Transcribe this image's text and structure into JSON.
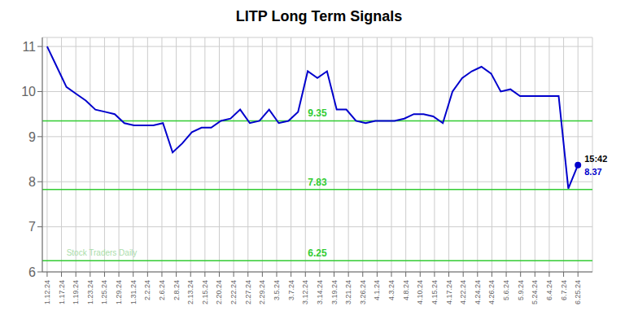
{
  "chart_data": {
    "type": "line",
    "title": "LITP Long Term Signals",
    "color": "#0000cc",
    "grid": true,
    "x": [
      0,
      1,
      2,
      3,
      4,
      5,
      6,
      7,
      8,
      9,
      10,
      11,
      12,
      13,
      14,
      15,
      16,
      17,
      18,
      19,
      20,
      21,
      22,
      23,
      24,
      25,
      26,
      27,
      28,
      29,
      30,
      31,
      32,
      33,
      34,
      35,
      36,
      37,
      38,
      39,
      40,
      41,
      42,
      43,
      44,
      45,
      46,
      47,
      48,
      49,
      50,
      51,
      52,
      53,
      54,
      55
    ],
    "values": [
      11.0,
      10.55,
      10.1,
      9.95,
      9.8,
      9.6,
      9.55,
      9.5,
      9.3,
      9.25,
      9.25,
      9.25,
      9.3,
      8.65,
      8.85,
      9.1,
      9.2,
      9.2,
      9.35,
      9.4,
      9.6,
      9.3,
      9.35,
      9.6,
      9.3,
      9.35,
      9.55,
      10.45,
      10.3,
      10.45,
      9.6,
      9.6,
      9.35,
      9.3,
      9.35,
      9.35,
      9.35,
      9.4,
      9.5,
      9.5,
      9.45,
      9.3,
      10.0,
      10.3,
      10.45,
      10.55,
      10.4,
      10.0,
      10.05,
      9.9,
      9.9,
      9.9,
      9.9,
      9.9,
      7.85,
      8.37
    ],
    "xlim": [
      -0.5,
      56.5
    ],
    "xticks": [
      {
        "value": 0,
        "label": "1.12.24"
      },
      {
        "value": 1.486486,
        "label": "1.17.24"
      },
      {
        "value": 2.972973,
        "label": "1.19.24"
      },
      {
        "value": 4.459459,
        "label": "1.23.24"
      },
      {
        "value": 5.945946,
        "label": "1.25.24"
      },
      {
        "value": 7.432432,
        "label": "1.29.24"
      },
      {
        "value": 8.918919,
        "label": "1.31.24"
      },
      {
        "value": 10.405405,
        "label": "2.2.24"
      },
      {
        "value": 11.891892,
        "label": "2.6.24"
      },
      {
        "value": 13.378378,
        "label": "2.8.24"
      },
      {
        "value": 14.864865,
        "label": "2.13.24"
      },
      {
        "value": 16.351351,
        "label": "2.15.24"
      },
      {
        "value": 17.837838,
        "label": "2.20.24"
      },
      {
        "value": 19.324324,
        "label": "2.22.24"
      },
      {
        "value": 20.810811,
        "label": "2.27.24"
      },
      {
        "value": 22.297297,
        "label": "2.29.24"
      },
      {
        "value": 23.783784,
        "label": "3.5.24"
      },
      {
        "value": 25.27027,
        "label": "3.7.24"
      },
      {
        "value": 26.756757,
        "label": "3.12.24"
      },
      {
        "value": 28.243243,
        "label": "3.14.24"
      },
      {
        "value": 29.72973,
        "label": "3.19.24"
      },
      {
        "value": 31.216216,
        "label": "3.21.24"
      },
      {
        "value": 32.702703,
        "label": "3.26.24"
      },
      {
        "value": 34.189189,
        "label": "4.1.24"
      },
      {
        "value": 35.675676,
        "label": "4.3.24"
      },
      {
        "value": 37.162162,
        "label": "4.8.24"
      },
      {
        "value": 38.648649,
        "label": "4.10.24"
      },
      {
        "value": 40.135135,
        "label": "4.15.24"
      },
      {
        "value": 41.621622,
        "label": "4.17.24"
      },
      {
        "value": 43.108108,
        "label": "4.22.24"
      },
      {
        "value": 44.594595,
        "label": "4.24.24"
      },
      {
        "value": 46.081081,
        "label": "4.26.24"
      },
      {
        "value": 47.567568,
        "label": "5.6.24"
      },
      {
        "value": 49.054054,
        "label": "5.9.24"
      },
      {
        "value": 50.540541,
        "label": "5.24.24"
      },
      {
        "value": 52.027027,
        "label": "6.4.24"
      },
      {
        "value": 53.513514,
        "label": "6.7.24"
      },
      {
        "value": 55,
        "label": "6.25.24"
      }
    ],
    "ylim": [
      6.0,
      11.2
    ],
    "yticks": [
      6,
      7,
      8,
      9,
      10,
      11
    ],
    "hlines": [
      {
        "value": 9.35,
        "color": "#33cc33"
      },
      {
        "value": 7.83,
        "color": "#33cc33"
      },
      {
        "value": 6.25,
        "color": "#33cc33"
      }
    ],
    "annotations": [
      {
        "text": "Stock Traders Daily",
        "x": 2,
        "y": 6.28,
        "color": "#aaddaa"
      },
      {
        "text": "15:42",
        "x": 55,
        "y": 8.37,
        "color": "#000000"
      },
      {
        "text": "8.37",
        "x": 55,
        "y": 8.37,
        "color": "#0000cc"
      }
    ]
  }
}
